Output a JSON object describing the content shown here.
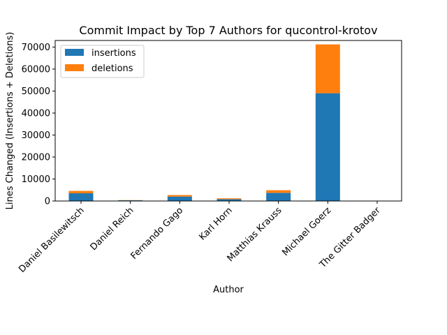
{
  "chart_data": {
    "type": "bar",
    "stacked": true,
    "title": "Commit Impact by Top 7 Authors for qucontrol-krotov",
    "xlabel": "Author",
    "ylabel": "Lines Changed (Insertions + Deletions)",
    "ylim": [
      0,
      73000
    ],
    "yticks": [
      0,
      10000,
      20000,
      30000,
      40000,
      50000,
      60000,
      70000
    ],
    "categories": [
      "Daniel Basilewitsch",
      "Daniel Reich",
      "Fernando Gago",
      "Karl Horn",
      "Matthias Krauss",
      "Michael Goerz",
      "The Gitter Badger"
    ],
    "series": [
      {
        "name": "insertions",
        "color": "#1f77b4",
        "values": [
          3500,
          300,
          2000,
          800,
          3700,
          49000,
          20
        ]
      },
      {
        "name": "deletions",
        "color": "#ff7f0e",
        "values": [
          1100,
          100,
          700,
          400,
          1200,
          22200,
          5
        ]
      }
    ],
    "legend": "top-left",
    "grid": false
  }
}
